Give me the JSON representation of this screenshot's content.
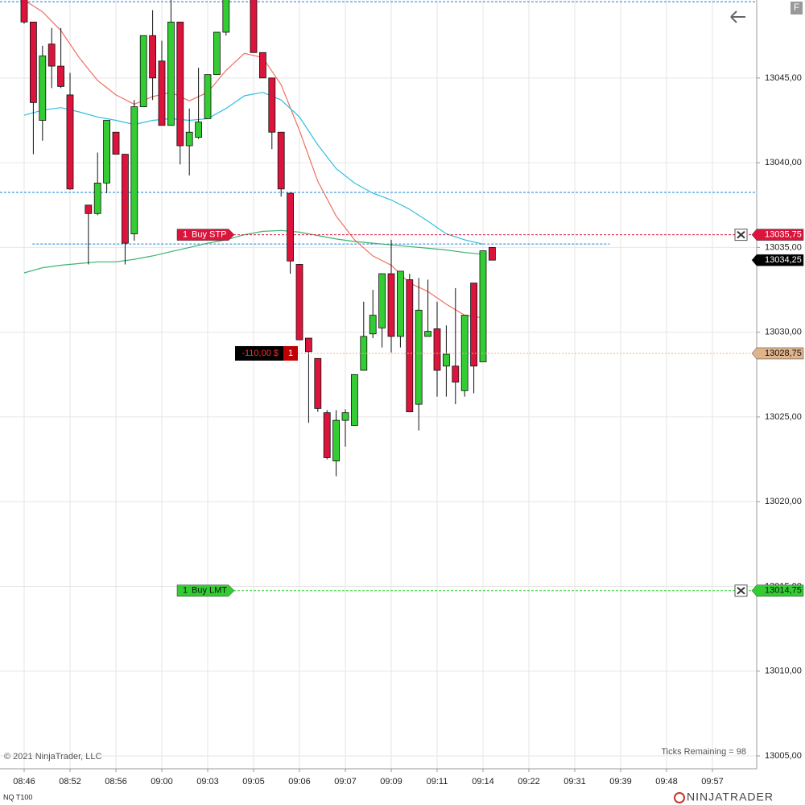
{
  "chart_data": {
    "type": "candlestick",
    "instrument": "NQ T100",
    "copyright": "© 2021 NinjaTrader, LLC",
    "ticks_remaining": "Ticks Remaining = 98",
    "brand": "NINJATRADER",
    "button": "F",
    "xlim": [
      -2.632,
      79.825
    ],
    "ylim": [
      13004.24,
      13049.6
    ],
    "xticks": [
      {
        "value": 0,
        "label": "08:46"
      },
      {
        "value": 5,
        "label": "08:52"
      },
      {
        "value": 10,
        "label": "08:56"
      },
      {
        "value": 15,
        "label": "09:00"
      },
      {
        "value": 20,
        "label": "09:03"
      },
      {
        "value": 25,
        "label": "09:05"
      },
      {
        "value": 30,
        "label": "09:06"
      },
      {
        "value": 35,
        "label": "09:07"
      },
      {
        "value": 40,
        "label": "09:09"
      },
      {
        "value": 45,
        "label": "09:11"
      },
      {
        "value": 50,
        "label": "09:14"
      },
      {
        "value": 55,
        "label": "09:22"
      },
      {
        "value": 60,
        "label": "09:31"
      },
      {
        "value": 65,
        "label": "09:39"
      },
      {
        "value": 70,
        "label": "09:48"
      },
      {
        "value": 75,
        "label": "09:57"
      }
    ],
    "yticks": [
      {
        "value": 13005,
        "label": "13005,00"
      },
      {
        "value": 13010,
        "label": "13010,00"
      },
      {
        "value": 13015,
        "label": "13015,00"
      },
      {
        "value": 13020,
        "label": "13020,00"
      },
      {
        "value": 13025,
        "label": "13025,00"
      },
      {
        "value": 13030,
        "label": "13030,00"
      },
      {
        "value": 13035,
        "label": "13035,00"
      },
      {
        "value": 13040,
        "label": "13040,00"
      },
      {
        "value": 13045,
        "label": "13045,00"
      }
    ],
    "grid": true,
    "up_color": "#33cc33",
    "down_color": "#dc143c",
    "candles": {
      "x": [
        0,
        1,
        2,
        3,
        4,
        5,
        7,
        8,
        9,
        10,
        11,
        12,
        13,
        14,
        15,
        16,
        17,
        18,
        19,
        20,
        21,
        22,
        25,
        26,
        27,
        28,
        29,
        30,
        31,
        32,
        33,
        34,
        35,
        36,
        37,
        38,
        39,
        40,
        41,
        42,
        43,
        44,
        45,
        46,
        47,
        48,
        49,
        50,
        51
      ],
      "open": [
        13050.5,
        13048.3,
        13042.5,
        13047.0,
        13045.7,
        13044.0,
        13037.5,
        13037.0,
        13038.8,
        13041.8,
        13040.5,
        13035.8,
        13043.3,
        13047.5,
        13046.0,
        13042.2,
        13048.3,
        13041.0,
        13041.5,
        13042.6,
        13045.2,
        13047.7,
        13050.5,
        13046.5,
        13045.0,
        13041.8,
        13038.2,
        13034.0,
        13029.65,
        13028.45,
        13025.25,
        13022.4,
        13024.8,
        13024.5,
        13027.75,
        13029.9,
        13030.25,
        13033.45,
        13029.75,
        13033.1,
        13025.75,
        13029.75,
        13030.2,
        13028.0,
        13028.0,
        13026.55,
        13032.9,
        13028.25,
        13035.0
      ],
      "high": [
        13051.0,
        13048.3,
        13046.9,
        13047.95,
        13047.95,
        13045.3,
        13037.5,
        13040.6,
        13042.5,
        13041.8,
        13040.5,
        13043.7,
        13047.5,
        13049.0,
        13047.2,
        13049.6,
        13048.3,
        13043.2,
        13045.6,
        13045.2,
        13047.7,
        13050.5,
        13050.5,
        13046.5,
        13045.0,
        13041.8,
        13038.2,
        13034.0,
        13029.65,
        13028.45,
        13025.4,
        13025.4,
        13025.45,
        13027.5,
        13031.8,
        13032.5,
        13033.45,
        13035.45,
        13033.6,
        13033.45,
        13033.2,
        13033.1,
        13031.8,
        13030.4,
        13032.6,
        13031.0,
        13032.9,
        13034.8,
        13035.0
      ],
      "low": [
        13048.2,
        13040.5,
        13041.3,
        13044.4,
        13044.4,
        13038.4,
        13034.0,
        13036.9,
        13038.2,
        13040.5,
        13034.0,
        13035.4,
        13043.3,
        13043.7,
        13042.2,
        13042.2,
        13039.9,
        13039.25,
        13041.4,
        13042.6,
        13045.2,
        13047.5,
        13046.5,
        13045.0,
        13040.8,
        13038.0,
        13033.45,
        13029.55,
        13024.65,
        13025.3,
        13022.5,
        13021.5,
        13023.25,
        13024.5,
        13027.75,
        13029.65,
        13029.1,
        13028.8,
        13029.1,
        13025.3,
        13024.2,
        13029.75,
        13026.2,
        13026.2,
        13025.75,
        13026.2,
        13026.4,
        13028.25,
        13034.25
      ],
      "close": [
        13048.3,
        13043.55,
        13046.3,
        13045.7,
        13044.5,
        13038.45,
        13037.0,
        13038.8,
        13042.5,
        13040.5,
        13035.25,
        13043.3,
        13047.5,
        13045.0,
        13042.2,
        13048.3,
        13041.0,
        13041.8,
        13042.4,
        13045.2,
        13047.7,
        13050.0,
        13046.5,
        13045.0,
        13041.8,
        13038.45,
        13034.2,
        13029.55,
        13028.85,
        13025.5,
        13022.6,
        13024.8,
        13025.25,
        13027.5,
        13029.75,
        13031.0,
        13033.45,
        13029.75,
        13033.6,
        13025.3,
        13031.3,
        13030.05,
        13027.75,
        13028.7,
        13027.05,
        13031.0,
        13028.0,
        13034.8,
        13034.25
      ]
    },
    "line_x": [
      0,
      2,
      4,
      6,
      8,
      10,
      12,
      14,
      16,
      18,
      20,
      22,
      24,
      26,
      28,
      30,
      32,
      34,
      36,
      38,
      40,
      42,
      44,
      46,
      48,
      50
    ],
    "series": [
      {
        "color": "#f07060",
        "values": [
          13049.6,
          13048.9,
          13047.8,
          13046.2,
          13044.85,
          13044.0,
          13043.45,
          13043.9,
          13044.15,
          13043.65,
          13044.15,
          13045.45,
          13046.45,
          13046.2,
          13044.6,
          13041.9,
          13038.9,
          13036.85,
          13035.45,
          13034.5,
          13033.95,
          13032.9,
          13032.4,
          13031.65,
          13031.0,
          13030.85
        ]
      },
      {
        "color": "#30bfe0",
        "values": [
          13042.8,
          13043.1,
          13043.25,
          13043.0,
          13042.7,
          13042.5,
          13042.25,
          13042.5,
          13042.6,
          13042.5,
          13042.6,
          13043.2,
          13043.95,
          13044.15,
          13043.7,
          13042.7,
          13041.05,
          13039.65,
          13038.8,
          13038.2,
          13037.8,
          13037.25,
          13036.55,
          13035.8,
          13035.45,
          13035.2
        ]
      },
      {
        "color": "#3cb371",
        "values": [
          13033.5,
          13033.8,
          13033.95,
          13034.05,
          13034.15,
          13034.15,
          13034.3,
          13034.5,
          13034.75,
          13035.0,
          13035.25,
          13035.45,
          13035.75,
          13035.95,
          13036.0,
          13035.9,
          13035.7,
          13035.5,
          13035.35,
          13035.25,
          13035.15,
          13035.05,
          13034.95,
          13034.85,
          13034.7,
          13034.6
        ]
      }
    ],
    "price_lines": [
      {
        "value": 13049.5,
        "color": "#1e7fd0"
      },
      {
        "value": 13038.25,
        "color": "#1e7fd0"
      },
      {
        "value": 13035.2,
        "color": "#1e7fd0",
        "x_range": [
          0.9,
          63.8
        ]
      }
    ],
    "orders": [
      {
        "quantity": 1,
        "label": "Buy STP",
        "color": "#dc143c",
        "price": {
          "value": 13035.75,
          "label": "13035,75"
        }
      },
      {
        "quantity": 1,
        "label": "Buy LMT",
        "color": "#32cd32",
        "price": {
          "value": 13014.75,
          "label": "13014,75"
        }
      }
    ],
    "position": {
      "pnl": {
        "value": -110,
        "label": "-110,00 $"
      },
      "quantity": 1,
      "color": "#e0b48a",
      "price": {
        "value": 13028.75,
        "label": "13028,75"
      }
    },
    "last_price": {
      "value": 13034.25,
      "label": "13034,25"
    }
  }
}
